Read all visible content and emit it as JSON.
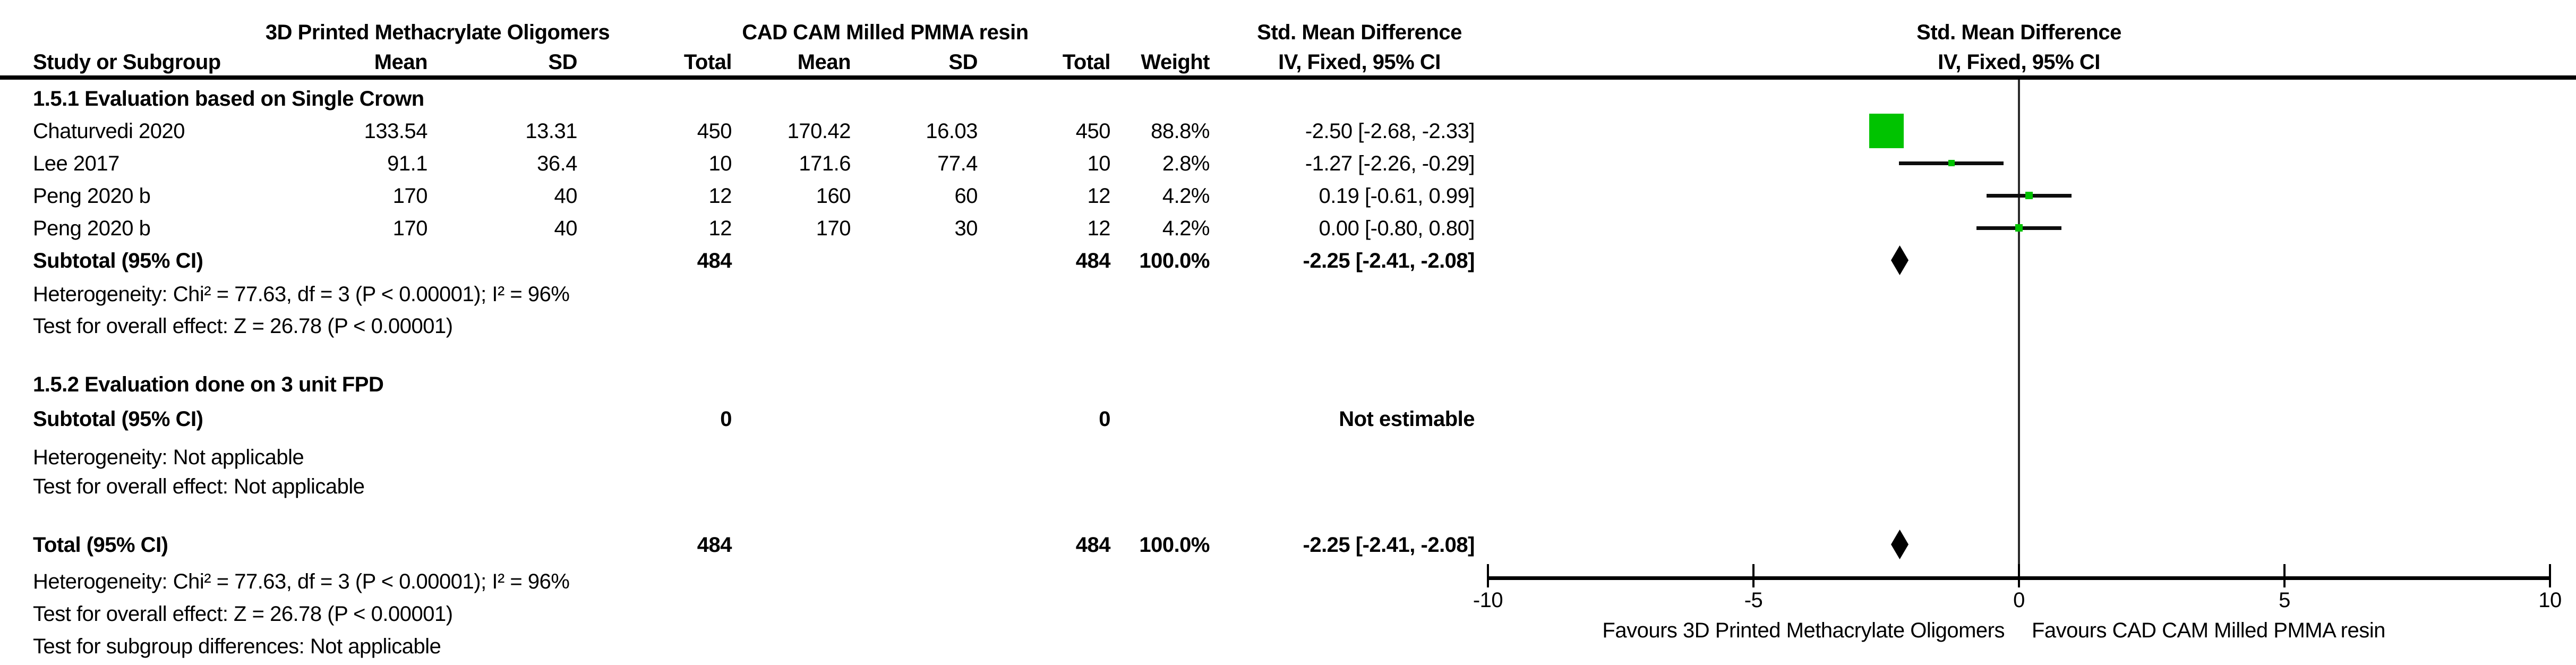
{
  "table": {
    "group_headers": {
      "experimental": "3D Printed Methacrylate Oligomers",
      "control": "CAD CAM Milled PMMA resin",
      "effect": "Std. Mean Difference",
      "effect_plot": "Std. Mean Difference"
    },
    "columns": {
      "study": "Study or Subgroup",
      "mean1": "Mean",
      "sd1": "SD",
      "total1": "Total",
      "mean2": "Mean",
      "sd2": "SD",
      "total2": "Total",
      "weight": "Weight",
      "method": "IV, Fixed, 95% CI",
      "method_plot": "IV, Fixed, 95% CI"
    },
    "group1_heading": "1.5.1 Evaluation based on Single Crown",
    "studies": [
      {
        "name": "Chaturvedi 2020",
        "mean1": "133.54",
        "sd1": "13.31",
        "total1": "450",
        "mean2": "170.42",
        "sd2": "16.03",
        "total2": "450",
        "weight": "88.8%",
        "ci": "-2.50 [-2.68, -2.33]"
      },
      {
        "name": "Lee 2017",
        "mean1": "91.1",
        "sd1": "36.4",
        "total1": "10",
        "mean2": "171.6",
        "sd2": "77.4",
        "total2": "10",
        "weight": "2.8%",
        "ci": "-1.27 [-2.26, -0.29]"
      },
      {
        "name": "Peng 2020 b",
        "mean1": "170",
        "sd1": "40",
        "total1": "12",
        "mean2": "160",
        "sd2": "60",
        "total2": "12",
        "weight": "4.2%",
        "ci": "0.19 [-0.61, 0.99]"
      },
      {
        "name": "Peng 2020 b",
        "mean1": "170",
        "sd1": "40",
        "total1": "12",
        "mean2": "170",
        "sd2": "30",
        "total2": "12",
        "weight": "4.2%",
        "ci": "0.00 [-0.80, 0.80]"
      }
    ],
    "group1_subtotal": {
      "label": "Subtotal (95% CI)",
      "total1": "484",
      "total2": "484",
      "weight": "100.0%",
      "ci": "-2.25 [-2.41, -2.08]"
    },
    "group1_heterogeneity": "Heterogeneity: Chi² = 77.63, df = 3 (P < 0.00001); I² = 96%",
    "group1_overall": "Test for overall effect: Z = 26.78 (P < 0.00001)",
    "group2_heading": "1.5.2 Evaluation done on 3 unit FPD",
    "group2_subtotal": {
      "label": "Subtotal (95% CI)",
      "total1": "0",
      "total2": "0",
      "ci": "Not estimable"
    },
    "group2_heterogeneity": "Heterogeneity: Not applicable",
    "group2_overall": "Test for overall effect: Not applicable",
    "total": {
      "label": "Total (95% CI)",
      "total1": "484",
      "total2": "484",
      "weight": "100.0%",
      "ci": "-2.25 [-2.41, -2.08]"
    },
    "total_heterogeneity": "Heterogeneity: Chi² = 77.63, df = 3 (P < 0.00001); I² = 96%",
    "total_overall": "Test for overall effect: Z = 26.78 (P < 0.00001)",
    "total_subgroup": "Test for subgroup differences: Not applicable"
  },
  "chart_data": {
    "type": "scatter",
    "variant": "forest-plot",
    "title": "Std. Mean Difference, IV, Fixed, 95% CI",
    "x_axis": {
      "min": -10,
      "max": 10,
      "ticks": [
        -10,
        -5,
        0,
        5,
        10
      ]
    },
    "points": [
      {
        "label": "Chaturvedi 2020",
        "effect": -2.5,
        "ci_low": -2.68,
        "ci_high": -2.33,
        "weight_pct": 88.8
      },
      {
        "label": "Lee 2017",
        "effect": -1.27,
        "ci_low": -2.26,
        "ci_high": -0.29,
        "weight_pct": 2.8
      },
      {
        "label": "Peng 2020 b",
        "effect": 0.19,
        "ci_low": -0.61,
        "ci_high": 0.99,
        "weight_pct": 4.2
      },
      {
        "label": "Peng 2020 b",
        "effect": 0.0,
        "ci_low": -0.8,
        "ci_high": 0.8,
        "weight_pct": 4.2
      }
    ],
    "diamonds": [
      {
        "label": "Subtotal (95% CI)",
        "effect": -2.25,
        "ci_low": -2.41,
        "ci_high": -2.08
      },
      {
        "label": "Total (95% CI)",
        "effect": -2.25,
        "ci_low": -2.41,
        "ci_high": -2.08
      }
    ],
    "marker_color": "#00c300",
    "favours_left": "Favours 3D Printed Methacrylate Oligomers",
    "favours_right": "Favours CAD CAM Milled PMMA resin"
  }
}
